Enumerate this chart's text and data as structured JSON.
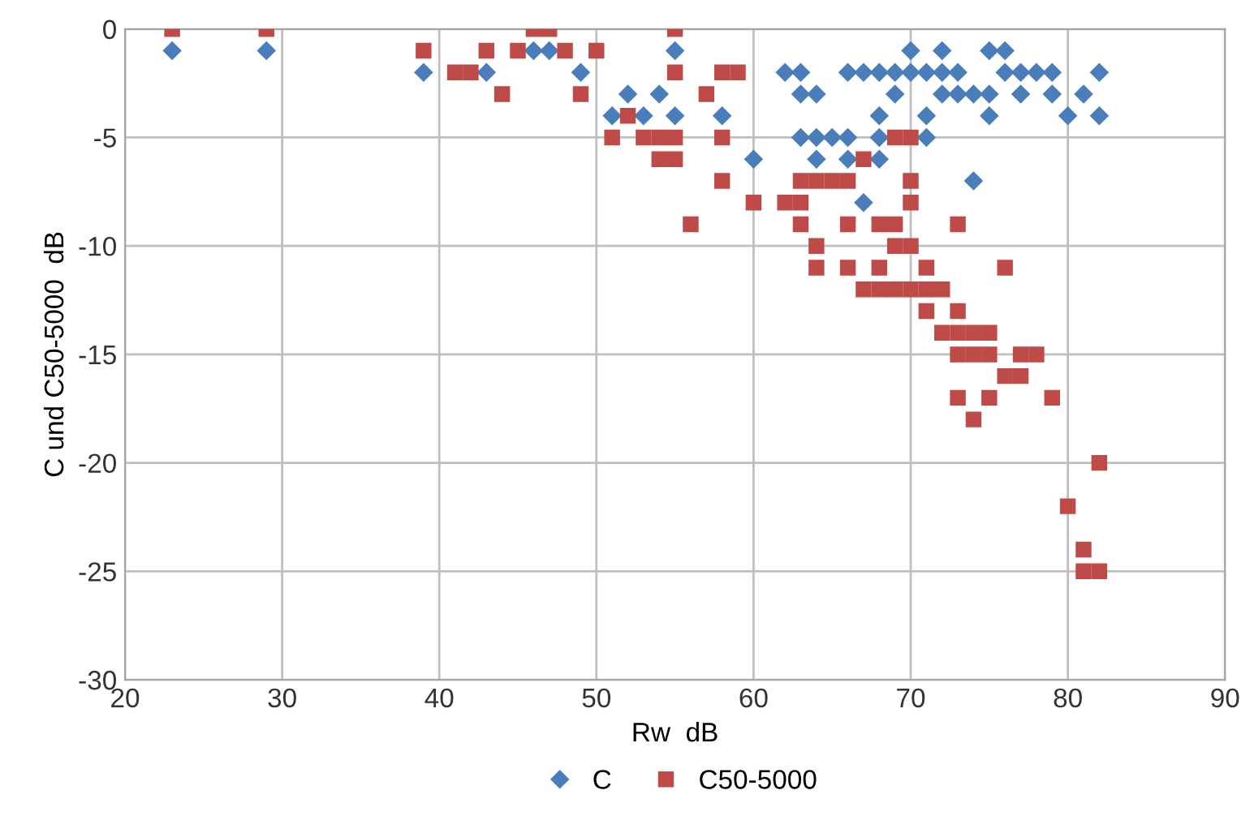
{
  "chart_data": {
    "type": "scatter",
    "xlabel": "Rw  dB",
    "ylabel": "C und C50-5000  dB",
    "xlim": [
      20,
      90
    ],
    "ylim": [
      -30,
      0
    ],
    "xticks": [
      20,
      30,
      40,
      50,
      60,
      70,
      80,
      90
    ],
    "yticks": [
      -30,
      -25,
      -20,
      -15,
      -10,
      -5,
      0
    ],
    "grid": true,
    "legend": "bottom",
    "series": [
      {
        "name": "C",
        "color": "#4a7ebb",
        "marker": "diamond",
        "x": [
          23,
          29,
          39,
          43,
          46,
          47,
          49,
          51,
          52,
          53,
          54,
          55,
          55,
          58,
          60,
          62,
          63,
          63,
          63,
          64,
          64,
          64,
          65,
          66,
          66,
          66,
          67,
          67,
          68,
          68,
          68,
          68,
          69,
          69,
          70,
          70,
          71,
          71,
          71,
          72,
          72,
          72,
          73,
          73,
          74,
          74,
          75,
          75,
          75,
          76,
          76,
          77,
          77,
          78,
          79,
          79,
          80,
          81,
          82,
          82
        ],
        "values": [
          -1,
          -1,
          -2,
          -2,
          -1,
          -1,
          -2,
          -4,
          -3,
          -4,
          -3,
          -1,
          -4,
          -4,
          -6,
          -2,
          -2,
          -3,
          -5,
          -3,
          -5,
          -6,
          -5,
          -2,
          -5,
          -6,
          -2,
          -8,
          -2,
          -4,
          -5,
          -6,
          -2,
          -3,
          -1,
          -2,
          -2,
          -4,
          -5,
          -1,
          -2,
          -3,
          -2,
          -3,
          -7,
          -3,
          -1,
          -3,
          -4,
          -1,
          -2,
          -2,
          -3,
          -2,
          -2,
          -3,
          -4,
          -3,
          -2,
          -4
        ]
      },
      {
        "name": "C50-5000",
        "color": "#be4b48",
        "marker": "square",
        "x": [
          23,
          29,
          39,
          41,
          42,
          43,
          44,
          45,
          46,
          47,
          48,
          49,
          50,
          51,
          52,
          53,
          54,
          54,
          55,
          55,
          55,
          55,
          56,
          57,
          58,
          58,
          58,
          59,
          60,
          62,
          63,
          63,
          63,
          64,
          64,
          64,
          65,
          66,
          66,
          66,
          67,
          67,
          68,
          68,
          68,
          69,
          69,
          69,
          69,
          70,
          70,
          70,
          70,
          70,
          71,
          71,
          71,
          72,
          72,
          73,
          73,
          73,
          73,
          73,
          74,
          74,
          74,
          75,
          75,
          75,
          76,
          76,
          77,
          77,
          78,
          79,
          80,
          81,
          81,
          82,
          82
        ],
        "values": [
          0,
          0,
          -1,
          -2,
          -2,
          -1,
          -3,
          -1,
          0,
          0,
          -1,
          -3,
          -1,
          -5,
          -4,
          -5,
          -5,
          -6,
          0,
          -2,
          -5,
          -6,
          -9,
          -3,
          -2,
          -5,
          -7,
          -2,
          -8,
          -8,
          -7,
          -8,
          -9,
          -7,
          -10,
          -11,
          -7,
          -7,
          -9,
          -11,
          -6,
          -12,
          -9,
          -11,
          -12,
          -5,
          -9,
          -10,
          -12,
          -5,
          -7,
          -8,
          -10,
          -12,
          -11,
          -13,
          -12,
          -12,
          -14,
          -9,
          -13,
          -14,
          -15,
          -17,
          -14,
          -15,
          -18,
          -14,
          -15,
          -17,
          -11,
          -16,
          -15,
          -16,
          -15,
          -17,
          -22,
          -24,
          -25,
          -20,
          -25
        ]
      }
    ]
  }
}
